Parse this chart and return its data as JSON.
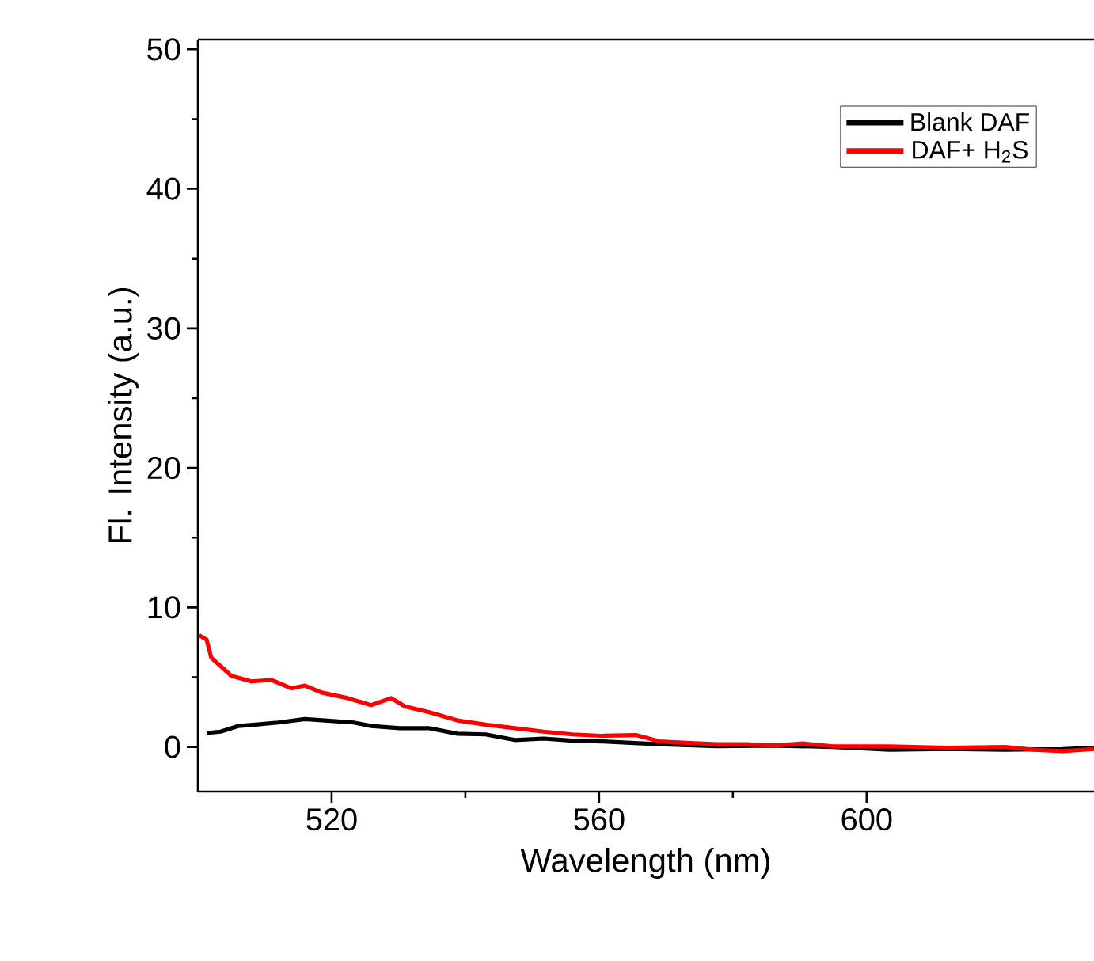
{
  "chart_data": {
    "type": "line",
    "xlabel": "Wavelength (nm)",
    "ylabel": "Fl. Intensity (a.u.)",
    "xlim": [
      500,
      634
    ],
    "xticks": [
      520,
      560,
      600
    ],
    "ylim": [
      -3.2,
      50.7
    ],
    "yticks": [
      0,
      10,
      20,
      30,
      40,
      50
    ],
    "legend": "top right",
    "grid": false,
    "marker": "none",
    "line_style": "solid",
    "series": [
      {
        "name": "Blank DAF",
        "color": "#000000",
        "x": [
          501.3,
          503.4,
          506,
          508.6,
          512,
          516,
          519,
          523.3,
          525.9,
          530.2,
          534.5,
          538.8,
          543,
          547.4,
          551.7,
          556,
          560.3,
          564.7,
          569,
          577.6,
          586,
          595,
          603.4,
          612,
          620.7,
          629.3,
          634
        ],
        "values": [
          1.0,
          1.1,
          1.5,
          1.6,
          1.75,
          2.0,
          1.9,
          1.75,
          1.5,
          1.35,
          1.35,
          0.95,
          0.9,
          0.5,
          0.6,
          0.45,
          0.4,
          0.3,
          0.2,
          0.05,
          0.1,
          0,
          -0.2,
          -0.15,
          -0.2,
          -0.15,
          -0.05
        ]
      },
      {
        "name": "DAF+ H$_{2}$S",
        "color": "#ff0000",
        "x": [
          500.2,
          501.3,
          502,
          505,
          508,
          511,
          514,
          516,
          518.5,
          522.4,
          525.9,
          528.9,
          531,
          534.5,
          538.8,
          543,
          547.4,
          551.7,
          556,
          560.3,
          565.5,
          569,
          573,
          577.6,
          582,
          586,
          590.5,
          595,
          603.4,
          612,
          620.7,
          625,
          629.3,
          634
        ],
        "values": [
          8.0,
          7.7,
          6.4,
          5.1,
          4.7,
          4.8,
          4.2,
          4.4,
          3.9,
          3.5,
          3.0,
          3.5,
          2.9,
          2.5,
          1.9,
          1.6,
          1.35,
          1.1,
          0.9,
          0.8,
          0.85,
          0.4,
          0.3,
          0.2,
          0.2,
          0.1,
          0.25,
          0.05,
          0.05,
          -0.05,
          0,
          -0.2,
          -0.3,
          -0.15
        ]
      }
    ]
  }
}
